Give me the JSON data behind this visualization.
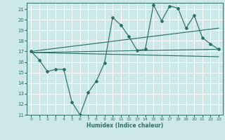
{
  "xlabel": "Humidex (Indice chaleur)",
  "background_color": "#cce8e8",
  "grid_color": "#ffffff",
  "line_color": "#2d7068",
  "xlim": [
    -0.5,
    23.5
  ],
  "ylim": [
    11,
    21.6
  ],
  "yticks": [
    11,
    12,
    13,
    14,
    15,
    16,
    17,
    18,
    19,
    20,
    21
  ],
  "xticks": [
    0,
    1,
    2,
    3,
    4,
    5,
    6,
    7,
    8,
    9,
    10,
    11,
    12,
    13,
    14,
    15,
    16,
    17,
    18,
    19,
    20,
    21,
    22,
    23
  ],
  "jagged_x": [
    0,
    1,
    2,
    3,
    4,
    5,
    6,
    7,
    8,
    9,
    10,
    11,
    12,
    13,
    14,
    15,
    16,
    17,
    18,
    19,
    20,
    21,
    22,
    23
  ],
  "jagged_y": [
    17.0,
    16.2,
    15.1,
    15.3,
    15.3,
    12.2,
    11.0,
    13.1,
    14.2,
    15.9,
    20.2,
    19.5,
    18.4,
    17.1,
    17.2,
    21.4,
    19.9,
    21.3,
    21.1,
    19.2,
    20.4,
    18.3,
    17.7,
    17.2
  ],
  "trend1_x": [
    0,
    23
  ],
  "trend1_y": [
    16.9,
    17.2
  ],
  "trend2_x": [
    0,
    23
  ],
  "trend2_y": [
    16.9,
    16.5
  ],
  "trend3_x": [
    0,
    23
  ],
  "trend3_y": [
    17.0,
    19.2
  ]
}
